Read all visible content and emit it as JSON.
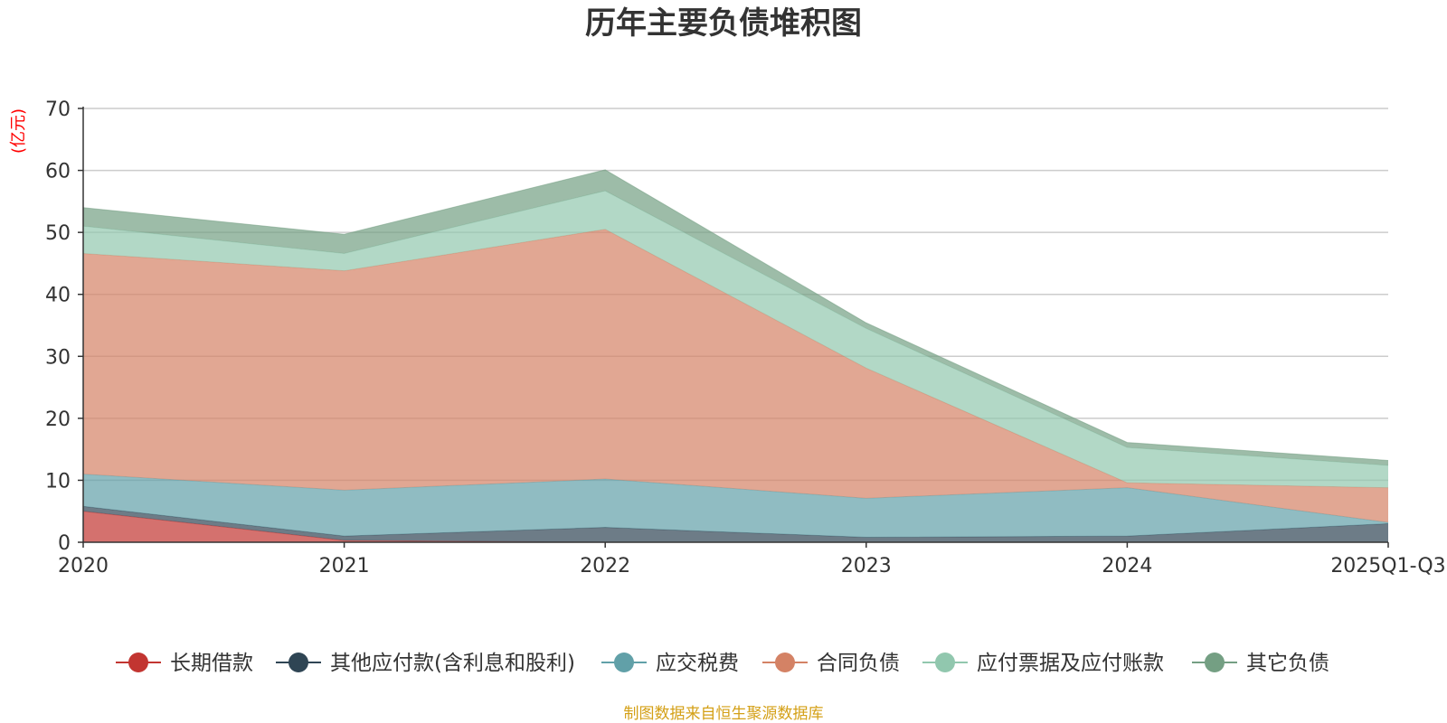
{
  "chart_data": {
    "type": "area",
    "stacked": true,
    "title": "历年主要负债堆积图",
    "ylabel": "(亿元)",
    "categories": [
      "2020",
      "2021",
      "2022",
      "2023",
      "2024",
      "2025Q1-Q3"
    ],
    "ylim": [
      0,
      70
    ],
    "yticks": [
      0,
      10,
      20,
      30,
      40,
      50,
      60,
      70
    ],
    "grid": true,
    "legend_position": "bottom",
    "series": [
      {
        "name": "长期借款",
        "color": "#c23531",
        "values": [
          5.0,
          0.3,
          0.0,
          0.0,
          0.0,
          0.0
        ]
      },
      {
        "name": "其他应付款(含利息和股利)",
        "color": "#2f4554",
        "values": [
          0.8,
          0.7,
          2.4,
          0.8,
          1.0,
          3.0
        ]
      },
      {
        "name": "应交税费",
        "color": "#61a0a8",
        "values": [
          5.2,
          7.4,
          7.8,
          6.3,
          7.8,
          0.2
        ]
      },
      {
        "name": "合同负债",
        "color": "#d48265",
        "values": [
          35.6,
          35.4,
          40.3,
          21.0,
          0.8,
          5.6
        ]
      },
      {
        "name": "应付票据及应付账款",
        "color": "#91c7ae",
        "values": [
          4.4,
          2.8,
          6.2,
          6.4,
          5.7,
          3.6
        ]
      },
      {
        "name": "其它负债",
        "color": "#749f83",
        "values": [
          3.0,
          3.1,
          3.4,
          0.9,
          0.8,
          0.8
        ]
      }
    ]
  },
  "source_note": "制图数据来自恒生聚源数据库"
}
